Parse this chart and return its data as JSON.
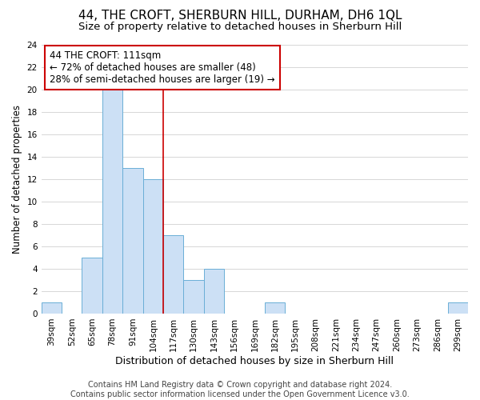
{
  "title": "44, THE CROFT, SHERBURN HILL, DURHAM, DH6 1QL",
  "subtitle": "Size of property relative to detached houses in Sherburn Hill",
  "xlabel": "Distribution of detached houses by size in Sherburn Hill",
  "ylabel": "Number of detached properties",
  "bin_labels": [
    "39sqm",
    "52sqm",
    "65sqm",
    "78sqm",
    "91sqm",
    "104sqm",
    "117sqm",
    "130sqm",
    "143sqm",
    "156sqm",
    "169sqm",
    "182sqm",
    "195sqm",
    "208sqm",
    "221sqm",
    "234sqm",
    "247sqm",
    "260sqm",
    "273sqm",
    "286sqm",
    "299sqm"
  ],
  "bar_heights": [
    1,
    0,
    5,
    20,
    13,
    12,
    7,
    3,
    4,
    0,
    0,
    1,
    0,
    0,
    0,
    0,
    0,
    0,
    0,
    0,
    1
  ],
  "bar_color": "#cce0f5",
  "bar_edge_color": "#6aaed6",
  "annotation_title": "44 THE CROFT: 111sqm",
  "annotation_line1": "← 72% of detached houses are smaller (48)",
  "annotation_line2": "28% of semi-detached houses are larger (19) →",
  "annotation_box_color": "#ffffff",
  "annotation_box_edge_color": "#cc0000",
  "vline_color": "#cc0000",
  "vline_x": 5.5,
  "ylim": [
    0,
    24
  ],
  "footer1": "Contains HM Land Registry data © Crown copyright and database right 2024.",
  "footer2": "Contains public sector information licensed under the Open Government Licence v3.0.",
  "title_fontsize": 11,
  "subtitle_fontsize": 9.5,
  "xlabel_fontsize": 9,
  "ylabel_fontsize": 8.5,
  "tick_fontsize": 7.5,
  "footer_fontsize": 7,
  "annotation_fontsize": 8.5
}
